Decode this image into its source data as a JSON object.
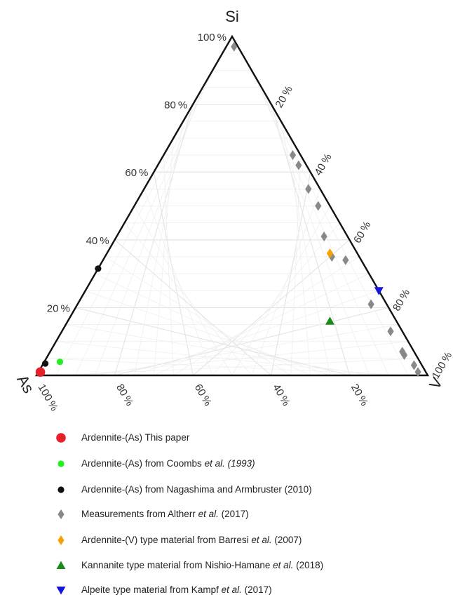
{
  "chart_data": {
    "type": "ternary",
    "axes": {
      "top": "Si",
      "left": "As",
      "right": "V"
    },
    "tick_values": [
      20,
      40,
      60,
      80,
      100
    ],
    "tick_suffix": "%",
    "grid": true,
    "series": [
      {
        "key": "paper",
        "marker": "circle-large",
        "color": "#e8202a",
        "label_parts": [
          {
            "text": "Ardennite-(As) This paper",
            "italic": false
          }
        ],
        "points": [
          {
            "Si": 1,
            "V": 0.5,
            "As": 98.5
          }
        ]
      },
      {
        "key": "coombs",
        "marker": "circle",
        "color": "#22ee22",
        "label_parts": [
          {
            "text": "Ardennite-(As) from Coombs ",
            "italic": false
          },
          {
            "text": "et al. (1993)",
            "italic": true
          }
        ],
        "points": [
          {
            "Si": 4,
            "V": 4,
            "As": 92
          }
        ]
      },
      {
        "key": "nagashima",
        "marker": "circle",
        "color": "#111111",
        "label_parts": [
          {
            "text": "Ardennite-(As) from Nagashima and Armbruster (2010)",
            "italic": false
          }
        ],
        "points": [
          {
            "Si": 3.5,
            "V": 0.5,
            "As": 96
          },
          {
            "Si": 31.5,
            "V": 0,
            "As": 68.5
          }
        ]
      },
      {
        "key": "altherr",
        "marker": "diamond",
        "color": "#888888",
        "label_parts": [
          {
            "text": "Measurements from Altherr ",
            "italic": false
          },
          {
            "text": "et al.",
            "italic": true
          },
          {
            "text": " (2017)",
            "italic": false
          }
        ],
        "points": [
          {
            "Si": 97,
            "V": 2,
            "As": 1
          },
          {
            "Si": 65,
            "V": 33,
            "As": 2
          },
          {
            "Si": 62,
            "V": 36,
            "As": 2
          },
          {
            "Si": 55,
            "V": 42,
            "As": 3
          },
          {
            "Si": 50,
            "V": 47,
            "As": 3
          },
          {
            "Si": 41,
            "V": 53,
            "As": 6
          },
          {
            "Si": 35,
            "V": 58,
            "As": 7
          },
          {
            "Si": 34,
            "V": 62,
            "As": 4
          },
          {
            "Si": 21,
            "V": 75,
            "As": 4
          },
          {
            "Si": 13,
            "V": 84,
            "As": 3
          },
          {
            "Si": 7,
            "V": 90,
            "As": 3
          },
          {
            "Si": 6,
            "V": 91,
            "As": 3
          },
          {
            "Si": 3,
            "V": 95,
            "As": 2
          },
          {
            "Si": 1,
            "V": 97,
            "As": 2
          }
        ]
      },
      {
        "key": "barresi",
        "marker": "diamond",
        "color": "#f5a100",
        "label_parts": [
          {
            "text": "Ardennite-(V) type material from Barresi ",
            "italic": false
          },
          {
            "text": "et al.",
            "italic": true
          },
          {
            "text": " (2007)",
            "italic": false
          }
        ],
        "points": [
          {
            "Si": 36,
            "V": 57,
            "As": 7
          }
        ]
      },
      {
        "key": "nishio",
        "marker": "triangle-up",
        "color": "#1a8c1a",
        "label_parts": [
          {
            "text": "Kannanite type material from Nishio-Hamane ",
            "italic": false
          },
          {
            "text": "et al.",
            "italic": true
          },
          {
            "text": " (2018)",
            "italic": false
          }
        ],
        "points": [
          {
            "Si": 16,
            "V": 67,
            "As": 17
          }
        ]
      },
      {
        "key": "kampf",
        "marker": "triangle-down",
        "color": "#1515dd",
        "label_parts": [
          {
            "text": "Alpeite type material from Kampf ",
            "italic": false
          },
          {
            "text": "et al.",
            "italic": true
          },
          {
            "text": " (2017)",
            "italic": false
          }
        ],
        "points": [
          {
            "Si": 25,
            "V": 75,
            "As": 0
          }
        ]
      }
    ]
  }
}
